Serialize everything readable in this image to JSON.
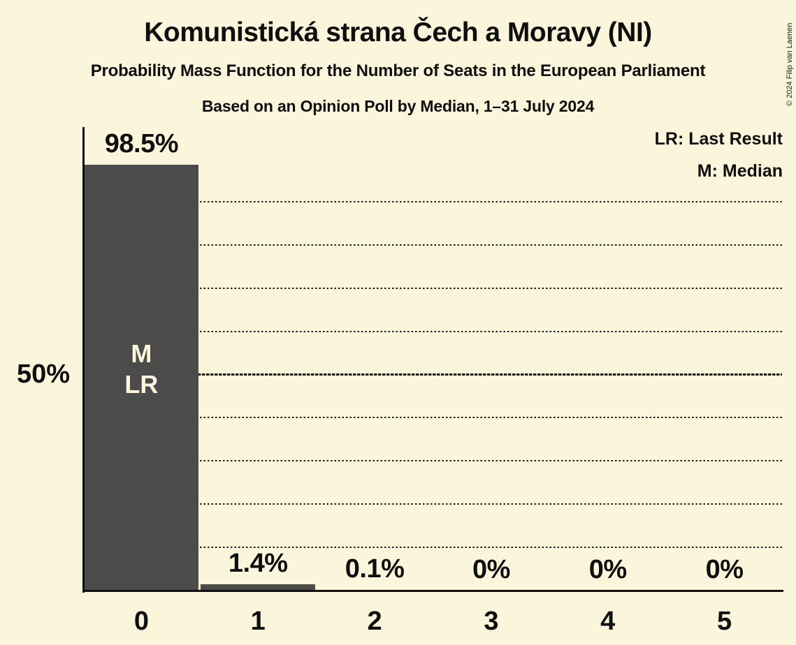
{
  "meta": {
    "copyright": "© 2024 Filip van Laenen"
  },
  "header": {
    "title": "Komunistická strana Čech a Moravy (NI)",
    "subtitle": "Probability Mass Function for the Number of Seats in the European Parliament",
    "note": "Based on an Opinion Poll by Median, 1–31 July 2024"
  },
  "legend": {
    "items": [
      "LR: Last Result",
      "M: Median"
    ]
  },
  "chart_data": {
    "type": "bar",
    "title": "Komunistická strana Čech a Moravy (NI)",
    "subtitle": "Probability Mass Function for the Number of Seats in the European Parliament",
    "source_note": "Based on an Opinion Poll by Median, 1–31 July 2024",
    "xlabel": "",
    "ylabel": "",
    "categories": [
      "0",
      "1",
      "2",
      "3",
      "4",
      "5"
    ],
    "values": [
      98.5,
      1.4,
      0.1,
      0,
      0,
      0
    ],
    "value_labels": [
      "98.5%",
      "1.4%",
      "0.1%",
      "0%",
      "0%",
      "0%"
    ],
    "ylim": [
      0,
      100
    ],
    "ytick": {
      "value": 50,
      "label": "50%"
    },
    "gridlines": {
      "step": 10,
      "solid_at": 50,
      "style": "dotted"
    },
    "legend_position": "top-right",
    "annotations": [
      {
        "category_index": 0,
        "lines": [
          "M",
          "LR"
        ]
      }
    ],
    "colors": {
      "background": "#FAF5DB",
      "bar": "#4B4B4B",
      "ink": "#0F0F0F",
      "bar_label": "#FAF5DB",
      "grid": "#1A1A1A"
    }
  }
}
